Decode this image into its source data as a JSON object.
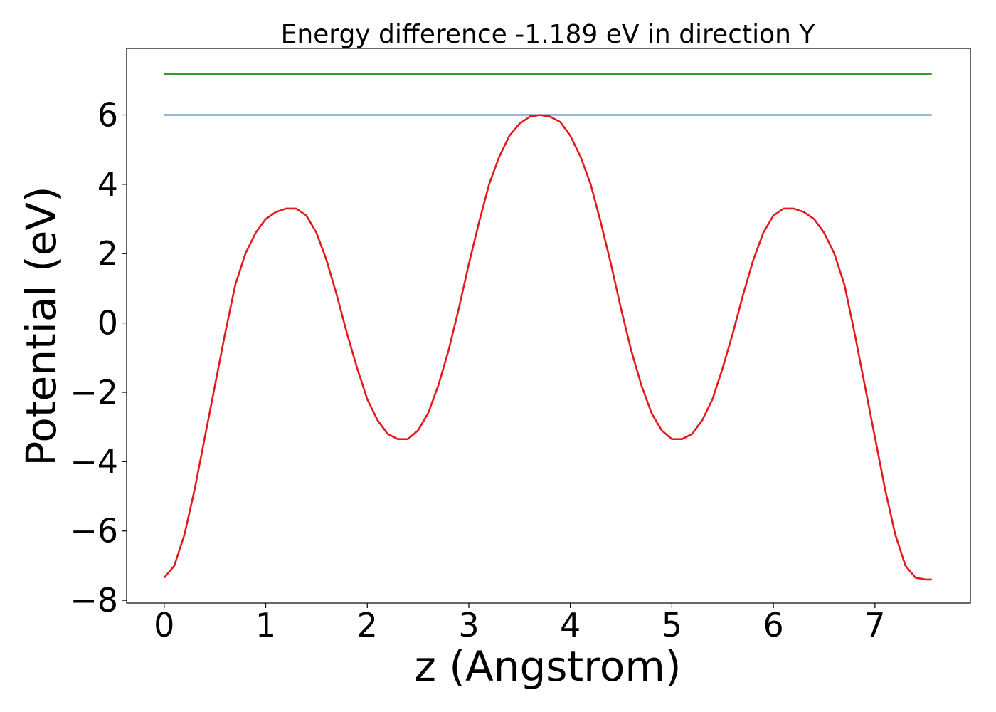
{
  "chart_data": {
    "type": "line",
    "title": "Energy difference -1.189 eV in direction Y",
    "xlabel": "z (Angstrom)",
    "ylabel": "Potential (eV)",
    "xlim": [
      -0.37,
      7.94
    ],
    "ylim": [
      -8.08,
      7.92
    ],
    "xticks": [
      0,
      1,
      2,
      3,
      4,
      5,
      6,
      7
    ],
    "xtick_labels": [
      "0",
      "1",
      "2",
      "3",
      "4",
      "5",
      "6",
      "7"
    ],
    "yticks": [
      -8,
      -6,
      -4,
      -2,
      0,
      2,
      4,
      6
    ],
    "ytick_labels": [
      "−8",
      "−6",
      "−4",
      "−2",
      "0",
      "2",
      "4",
      "6"
    ],
    "grid": false,
    "series": [
      {
        "color": "#2ca02c",
        "x": [
          0,
          7.56
        ],
        "y": [
          7.18,
          7.18
        ]
      },
      {
        "color": "#1f77b4",
        "x": [
          0,
          7.56
        ],
        "y": [
          6.0,
          6.0
        ]
      },
      {
        "color": "#e31a1c",
        "x": [
          0.0,
          0.1,
          0.2,
          0.3,
          0.4,
          0.5,
          0.6,
          0.7,
          0.8,
          0.9,
          1.0,
          1.1,
          1.2,
          1.3,
          1.4,
          1.5,
          1.6,
          1.7,
          1.8,
          1.9,
          2.0,
          2.1,
          2.2,
          2.3,
          2.4,
          2.5,
          2.6,
          2.7,
          2.8,
          2.9,
          3.0,
          3.1,
          3.2,
          3.3,
          3.4,
          3.5,
          3.6,
          3.7,
          3.8,
          3.9,
          4.0,
          4.1,
          4.2,
          4.3,
          4.4,
          4.5,
          4.6,
          4.7,
          4.8,
          4.9,
          5.0,
          5.1,
          5.2,
          5.3,
          5.4,
          5.5,
          5.6,
          5.7,
          5.8,
          5.9,
          6.0,
          6.1,
          6.2,
          6.3,
          6.4,
          6.5,
          6.6,
          6.7,
          6.8,
          6.9,
          7.0,
          7.1,
          7.2,
          7.3,
          7.4,
          7.5,
          7.56
        ],
        "y": [
          -7.35,
          -7.0,
          -6.1,
          -4.8,
          -3.3,
          -1.8,
          -0.3,
          1.1,
          2.0,
          2.6,
          3.0,
          3.2,
          3.3,
          3.3,
          3.1,
          2.6,
          1.8,
          0.8,
          -0.3,
          -1.3,
          -2.2,
          -2.8,
          -3.2,
          -3.35,
          -3.35,
          -3.1,
          -2.6,
          -1.8,
          -0.8,
          0.4,
          1.7,
          2.9,
          4.0,
          4.8,
          5.4,
          5.75,
          5.95,
          6.0,
          5.95,
          5.8,
          5.4,
          4.8,
          4.0,
          2.9,
          1.7,
          0.4,
          -0.8,
          -1.8,
          -2.6,
          -3.1,
          -3.35,
          -3.35,
          -3.2,
          -2.8,
          -2.2,
          -1.3,
          -0.3,
          0.8,
          1.8,
          2.6,
          3.1,
          3.3,
          3.3,
          3.2,
          3.0,
          2.6,
          2.0,
          1.1,
          -0.3,
          -1.8,
          -3.3,
          -4.8,
          -6.1,
          -7.0,
          -7.35,
          -7.4,
          -7.4
        ]
      }
    ]
  }
}
